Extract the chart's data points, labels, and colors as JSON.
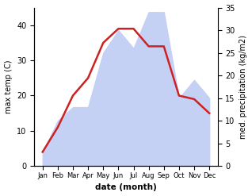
{
  "months": [
    "Jan",
    "Feb",
    "Mar",
    "Apr",
    "May",
    "Jun",
    "Jul",
    "Aug",
    "Sep",
    "Oct",
    "Nov",
    "Dec"
  ],
  "temp": [
    4,
    11,
    20,
    25,
    35,
    39,
    39,
    34,
    34,
    20,
    19,
    15
  ],
  "precip": [
    3,
    10,
    13,
    13,
    25,
    30,
    26,
    34,
    34,
    15,
    19,
    15
  ],
  "temp_color": "#cc2222",
  "precip_fill_color": "#c5d0f5",
  "ylabel_left": "max temp (C)",
  "ylabel_right": "med. precipitation (kg/m2)",
  "xlabel": "date (month)",
  "ylim_left": [
    0,
    45
  ],
  "ylim_right": [
    0,
    35
  ],
  "yticks_left": [
    0,
    10,
    20,
    30,
    40
  ],
  "yticks_right": [
    0,
    5,
    10,
    15,
    20,
    25,
    30,
    35
  ],
  "background_color": "#ffffff"
}
